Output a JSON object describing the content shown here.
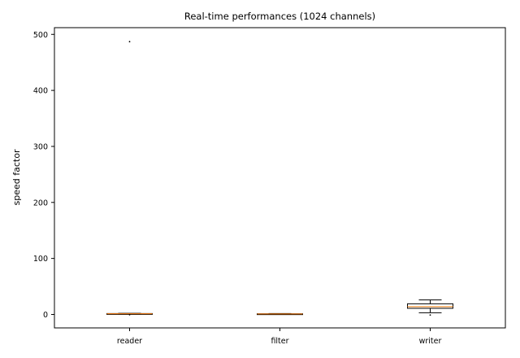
{
  "chart_data": {
    "type": "box",
    "title": "Real-time performances (1024 channels)",
    "xlabel": "",
    "ylabel": "speed factor",
    "ylim": [
      -24,
      512
    ],
    "yticks": [
      0,
      100,
      200,
      300,
      400,
      500
    ],
    "categories": [
      "reader",
      "filter",
      "writer"
    ],
    "series": [
      {
        "category": "reader",
        "whisker_low": 0.5,
        "q1": 0.8,
        "median": 1.2,
        "q3": 1.6,
        "whisker_high": 2.0,
        "outliers": [
          487,
          -0.6
        ]
      },
      {
        "category": "filter",
        "whisker_low": 0.3,
        "q1": 0.6,
        "median": 0.9,
        "q3": 1.2,
        "whisker_high": 1.6,
        "outliers": []
      },
      {
        "category": "writer",
        "whisker_low": 3,
        "q1": 11,
        "median": 14,
        "q3": 19,
        "whisker_high": 26,
        "outliers": [
          -1
        ]
      }
    ],
    "colors": {
      "box": "#000000",
      "median": "#ff7f0e",
      "axis": "#000000"
    },
    "grid": false
  }
}
